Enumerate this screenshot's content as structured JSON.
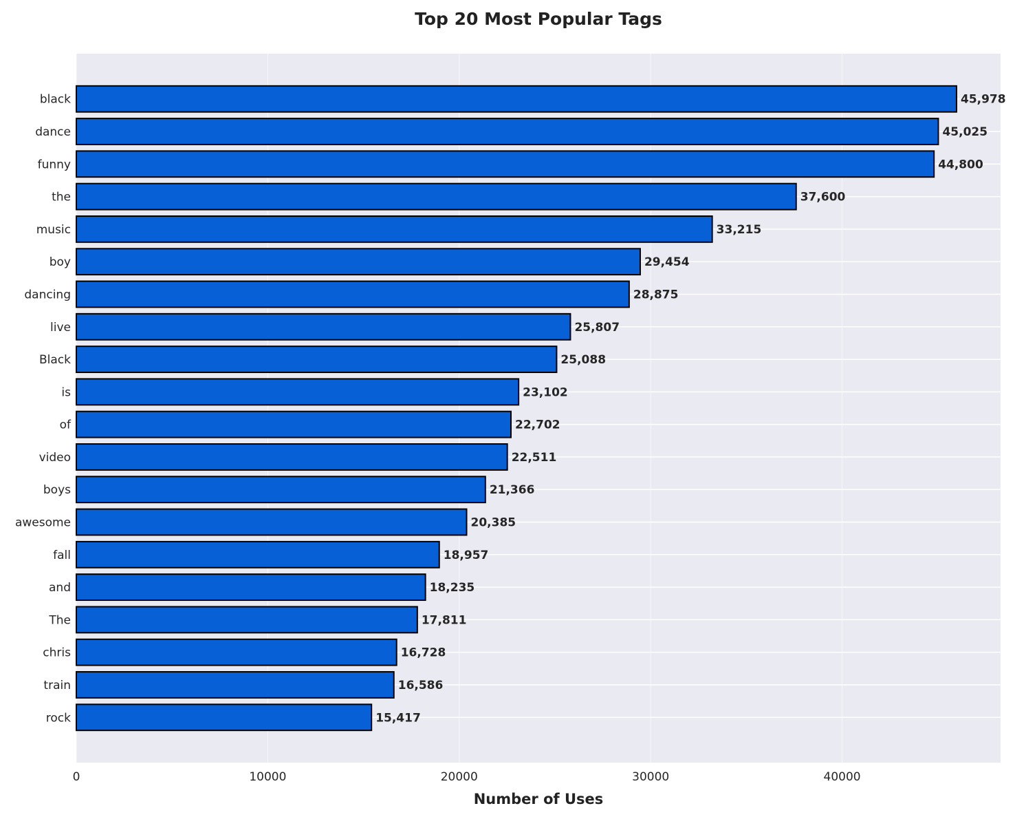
{
  "chart_data": {
    "type": "bar",
    "orientation": "horizontal",
    "title": "Top 20 Most Popular Tags",
    "xlabel": "Number of Uses",
    "ylabel": "",
    "categories": [
      "black",
      "dance",
      "funny",
      "the",
      "music",
      "boy",
      "dancing",
      "live",
      "Black",
      "is",
      "of",
      "video",
      "boys",
      "awesome",
      "fall",
      "and",
      "The",
      "chris",
      "train",
      "rock"
    ],
    "values": [
      45978,
      45025,
      44800,
      37600,
      33215,
      29454,
      28875,
      25807,
      25088,
      23102,
      22702,
      22511,
      21366,
      20385,
      18957,
      18235,
      17811,
      16728,
      16586,
      15417
    ],
    "data_labels": [
      "45,978",
      "45,025",
      "44,800",
      "37,600",
      "33,215",
      "29,454",
      "28,875",
      "25,807",
      "25,088",
      "23,102",
      "22,702",
      "22,511",
      "21,366",
      "20,385",
      "18,957",
      "18,235",
      "17,811",
      "16,728",
      "16,586",
      "15,417"
    ],
    "xlim": [
      0,
      48277
    ],
    "xticks": [
      "0",
      "10000",
      "20000",
      "30000",
      "40000"
    ],
    "xtick_values": [
      0,
      10000,
      20000,
      30000,
      40000
    ],
    "grid": true,
    "colors": {
      "bar": "#0760d5",
      "edge": "#000000",
      "background": "#eaeaf2",
      "grid": "#ffffff"
    }
  }
}
